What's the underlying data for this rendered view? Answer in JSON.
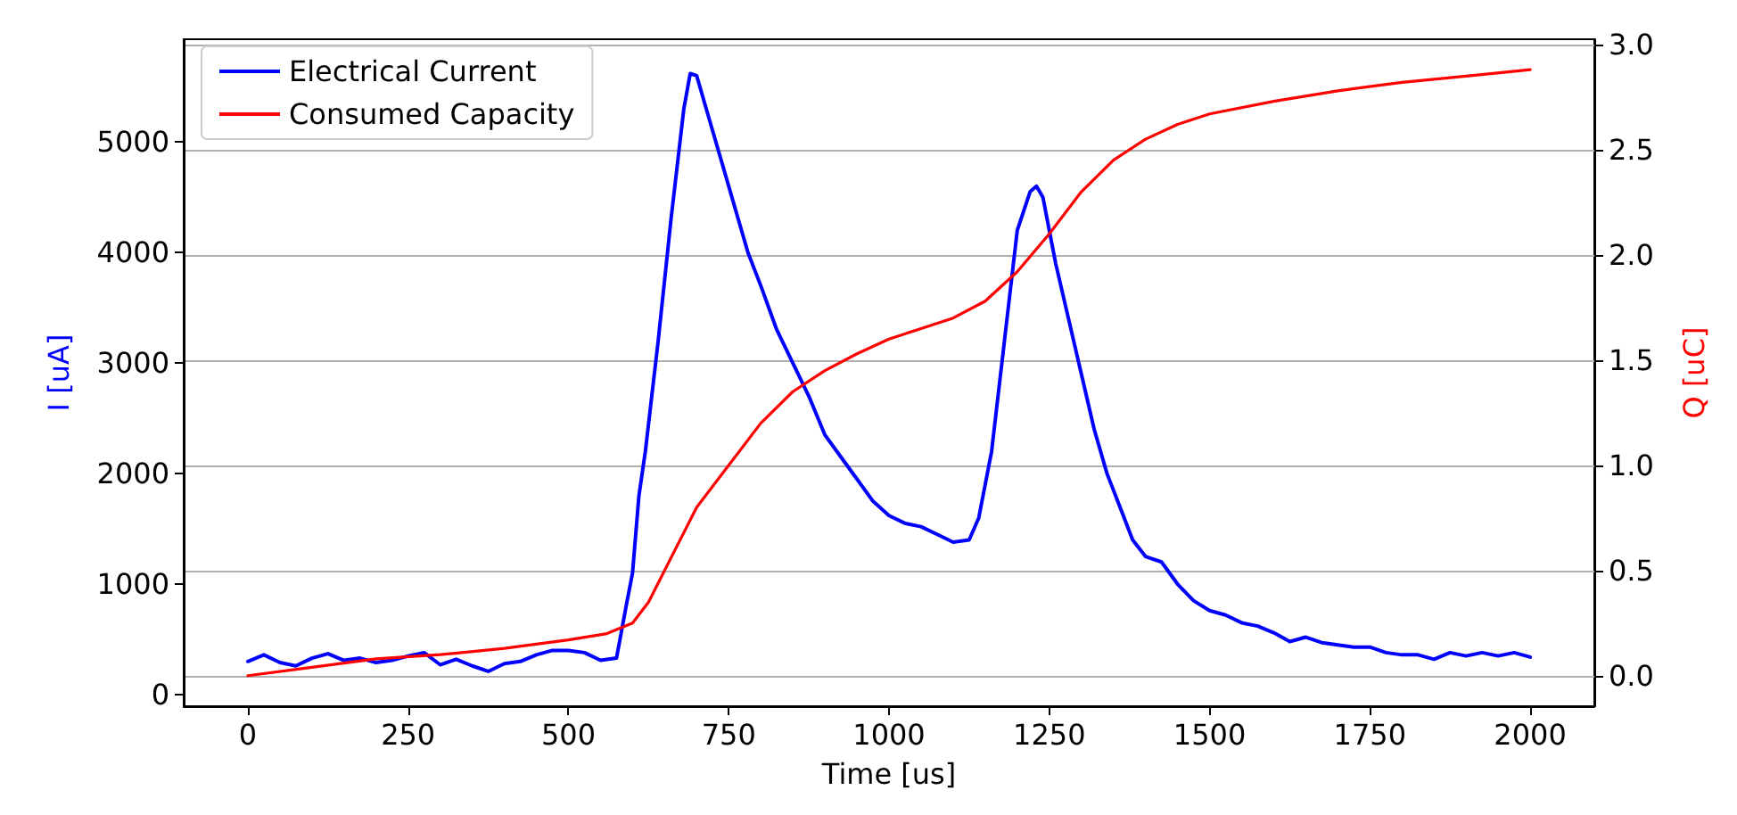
{
  "chart_data": {
    "type": "line",
    "xlabel": "Time [us]",
    "ylabel": "I [uA]",
    "y2label": "Q [uC]",
    "xlim": [
      -100,
      2100
    ],
    "xticks": [
      0,
      250,
      500,
      750,
      1000,
      1250,
      1500,
      1750,
      2000
    ],
    "ylim": [
      -105,
      5930
    ],
    "yticks": [
      0,
      1000,
      2000,
      3000,
      4000,
      5000
    ],
    "y2lim": [
      -0.145,
      3.025
    ],
    "y2ticks": [
      {
        "value": 0,
        "label": "0.0"
      },
      {
        "value": 0.5,
        "label": "0.5"
      },
      {
        "value": 1,
        "label": "1.0"
      },
      {
        "value": 1.5,
        "label": "1.5"
      },
      {
        "value": 2,
        "label": "2.0"
      },
      {
        "value": 2.5,
        "label": "2.5"
      },
      {
        "value": 3,
        "label": "3.0"
      }
    ],
    "grid": "y2",
    "legend": "top left",
    "line_style": "solid",
    "marker": "none",
    "series": [
      {
        "name": "Electrical Current",
        "color": "#0000ff",
        "x": [
          0,
          25,
          50,
          75,
          100,
          125,
          150,
          175,
          200,
          225,
          250,
          275,
          300,
          325,
          350,
          375,
          400,
          425,
          450,
          475,
          500,
          525,
          550,
          575,
          590,
          600,
          610,
          620,
          640,
          660,
          680,
          690,
          700,
          720,
          740,
          760,
          780,
          800,
          825,
          850,
          875,
          900,
          925,
          950,
          975,
          1000,
          1025,
          1050,
          1075,
          1100,
          1125,
          1140,
          1160,
          1180,
          1200,
          1220,
          1230,
          1240,
          1260,
          1280,
          1300,
          1320,
          1340,
          1360,
          1380,
          1400,
          1425,
          1450,
          1475,
          1500,
          1525,
          1550,
          1575,
          1600,
          1625,
          1650,
          1675,
          1700,
          1725,
          1750,
          1775,
          1800,
          1825,
          1850,
          1875,
          1900,
          1925,
          1950,
          1975,
          2000
        ],
        "values": [
          300,
          360,
          290,
          260,
          330,
          370,
          310,
          330,
          290,
          310,
          350,
          380,
          270,
          320,
          260,
          210,
          280,
          300,
          360,
          400,
          400,
          380,
          310,
          330,
          800,
          1100,
          1800,
          2200,
          3200,
          4300,
          5300,
          5620,
          5600,
          5200,
          4800,
          4400,
          4000,
          3700,
          3300,
          3000,
          2700,
          2350,
          2150,
          1950,
          1750,
          1620,
          1550,
          1520,
          1450,
          1380,
          1400,
          1600,
          2200,
          3200,
          4200,
          4550,
          4600,
          4500,
          3900,
          3400,
          2900,
          2400,
          2000,
          1700,
          1400,
          1250,
          1200,
          1000,
          850,
          760,
          720,
          650,
          620,
          560,
          480,
          520,
          470,
          450,
          430,
          430,
          380,
          360,
          360,
          320,
          380,
          350,
          380,
          350,
          380,
          340
        ]
      },
      {
        "name": "Consumed Capacity",
        "color": "#ff0000",
        "axis": "y2",
        "x": [
          0,
          100,
          200,
          300,
          400,
          500,
          560,
          600,
          625,
          650,
          700,
          750,
          800,
          850,
          900,
          950,
          1000,
          1050,
          1100,
          1150,
          1200,
          1250,
          1300,
          1350,
          1400,
          1450,
          1500,
          1600,
          1700,
          1800,
          1900,
          2000
        ],
        "values": [
          0.0,
          0.04,
          0.08,
          0.1,
          0.13,
          0.17,
          0.2,
          0.25,
          0.35,
          0.5,
          0.8,
          1.0,
          1.2,
          1.35,
          1.45,
          1.53,
          1.6,
          1.65,
          1.7,
          1.78,
          1.92,
          2.1,
          2.3,
          2.45,
          2.55,
          2.62,
          2.67,
          2.73,
          2.78,
          2.82,
          2.85,
          2.88
        ]
      }
    ]
  }
}
